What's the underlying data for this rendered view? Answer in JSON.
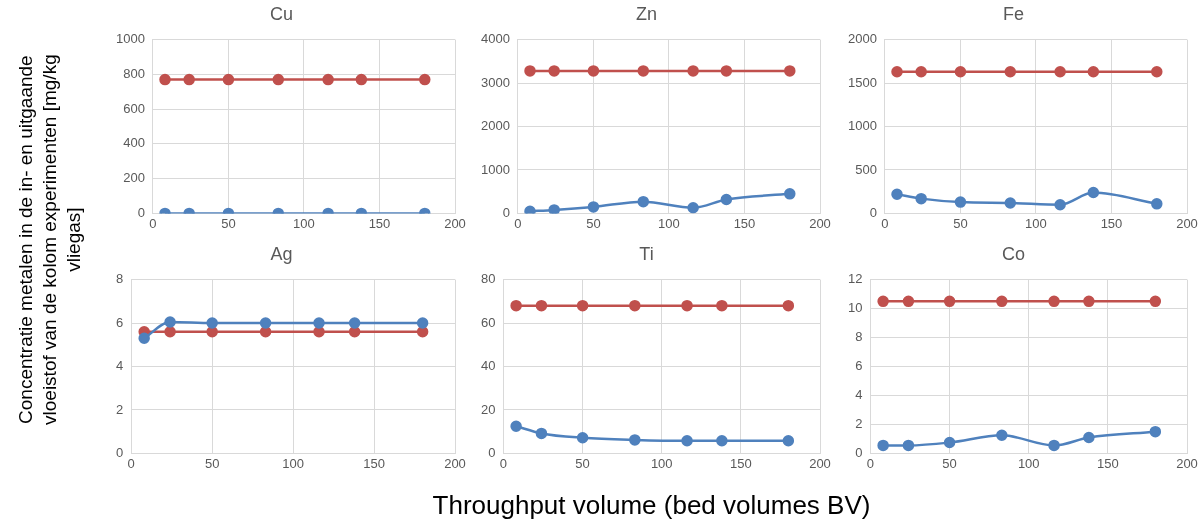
{
  "chart_data": [
    {
      "type": "line",
      "title": "Cu",
      "ylabel": "Concentratie metalen in de in- en uitgaande vloeistof van de kolom experimenten [mg/kg vliegas]",
      "x": [
        8,
        24,
        50,
        83,
        116,
        138,
        180
      ],
      "series": [
        {
          "color": "#4f81bd",
          "values": [
            0,
            0,
            0,
            0,
            0,
            0,
            0
          ]
        },
        {
          "color": "#c0504d",
          "values": [
            770,
            770,
            770,
            770,
            770,
            770,
            770
          ]
        }
      ],
      "xlim": [
        0,
        200
      ],
      "xticks": [
        0,
        50,
        100,
        150,
        200
      ],
      "ylim": [
        0,
        1000
      ],
      "yticks": [
        0,
        200,
        400,
        600,
        800,
        1000
      ],
      "grid": true,
      "legend": false,
      "marker": "circle"
    },
    {
      "type": "line",
      "title": "Zn",
      "x": [
        8,
        24,
        50,
        83,
        116,
        138,
        180
      ],
      "series": [
        {
          "color": "#4f81bd",
          "values": [
            50,
            80,
            150,
            270,
            130,
            320,
            450
          ]
        },
        {
          "color": "#c0504d",
          "values": [
            3280,
            3280,
            3280,
            3280,
            3280,
            3280,
            3280
          ]
        }
      ],
      "xlim": [
        0,
        200
      ],
      "xticks": [
        0,
        50,
        100,
        150,
        200
      ],
      "ylim": [
        0,
        4000
      ],
      "yticks": [
        0,
        1000,
        2000,
        3000,
        4000
      ],
      "grid": true,
      "legend": false,
      "marker": "circle"
    },
    {
      "type": "line",
      "title": "Fe",
      "x": [
        8,
        24,
        50,
        83,
        116,
        138,
        180
      ],
      "series": [
        {
          "color": "#4f81bd",
          "values": [
            220,
            170,
            130,
            120,
            100,
            240,
            110
          ]
        },
        {
          "color": "#c0504d",
          "values": [
            1630,
            1630,
            1630,
            1630,
            1630,
            1630,
            1630
          ]
        }
      ],
      "xlim": [
        0,
        200
      ],
      "xticks": [
        0,
        50,
        100,
        150,
        200
      ],
      "ylim": [
        0,
        2000
      ],
      "yticks": [
        0,
        500,
        1000,
        1500,
        2000
      ],
      "grid": true,
      "legend": false,
      "marker": "circle"
    },
    {
      "type": "line",
      "title": "Ag",
      "x": [
        8,
        24,
        50,
        83,
        116,
        138,
        180
      ],
      "series": [
        {
          "color": "#4f81bd",
          "values": [
            5.3,
            6.05,
            6.0,
            6.0,
            6.0,
            6.0,
            6.0
          ]
        },
        {
          "color": "#c0504d",
          "values": [
            5.6,
            5.6,
            5.6,
            5.6,
            5.6,
            5.6,
            5.6
          ]
        }
      ],
      "xlim": [
        0,
        200
      ],
      "xticks": [
        0,
        50,
        100,
        150,
        200
      ],
      "ylim": [
        0,
        8
      ],
      "yticks": [
        0,
        2,
        4,
        6,
        8
      ],
      "grid": true,
      "legend": false,
      "marker": "circle"
    },
    {
      "type": "line",
      "title": "Ti",
      "xlabel": "Throughput volume (bed volumes BV)",
      "x": [
        8,
        24,
        50,
        83,
        116,
        138,
        180
      ],
      "series": [
        {
          "color": "#4f81bd",
          "values": [
            12.5,
            9.2,
            7.2,
            6.2,
            5.8,
            5.8,
            5.8
          ]
        },
        {
          "color": "#c0504d",
          "values": [
            68,
            68,
            68,
            68,
            68,
            68,
            68
          ]
        }
      ],
      "xlim": [
        0,
        200
      ],
      "xticks": [
        0,
        50,
        100,
        150,
        200
      ],
      "ylim": [
        0,
        80
      ],
      "yticks": [
        0,
        20,
        40,
        60,
        80
      ],
      "grid": true,
      "legend": false,
      "marker": "circle"
    },
    {
      "type": "line",
      "title": "Co",
      "x": [
        8,
        24,
        50,
        83,
        116,
        138,
        180
      ],
      "series": [
        {
          "color": "#4f81bd",
          "values": [
            0.55,
            0.55,
            0.75,
            1.25,
            0.55,
            1.1,
            1.5
          ]
        },
        {
          "color": "#c0504d",
          "values": [
            10.5,
            10.5,
            10.5,
            10.5,
            10.5,
            10.5,
            10.5
          ]
        }
      ],
      "xlim": [
        0,
        200
      ],
      "xticks": [
        0,
        50,
        100,
        150,
        200
      ],
      "ylim": [
        0,
        12
      ],
      "yticks": [
        0,
        2,
        4,
        6,
        8,
        10,
        12
      ],
      "grid": true,
      "legend": false,
      "marker": "circle"
    }
  ]
}
